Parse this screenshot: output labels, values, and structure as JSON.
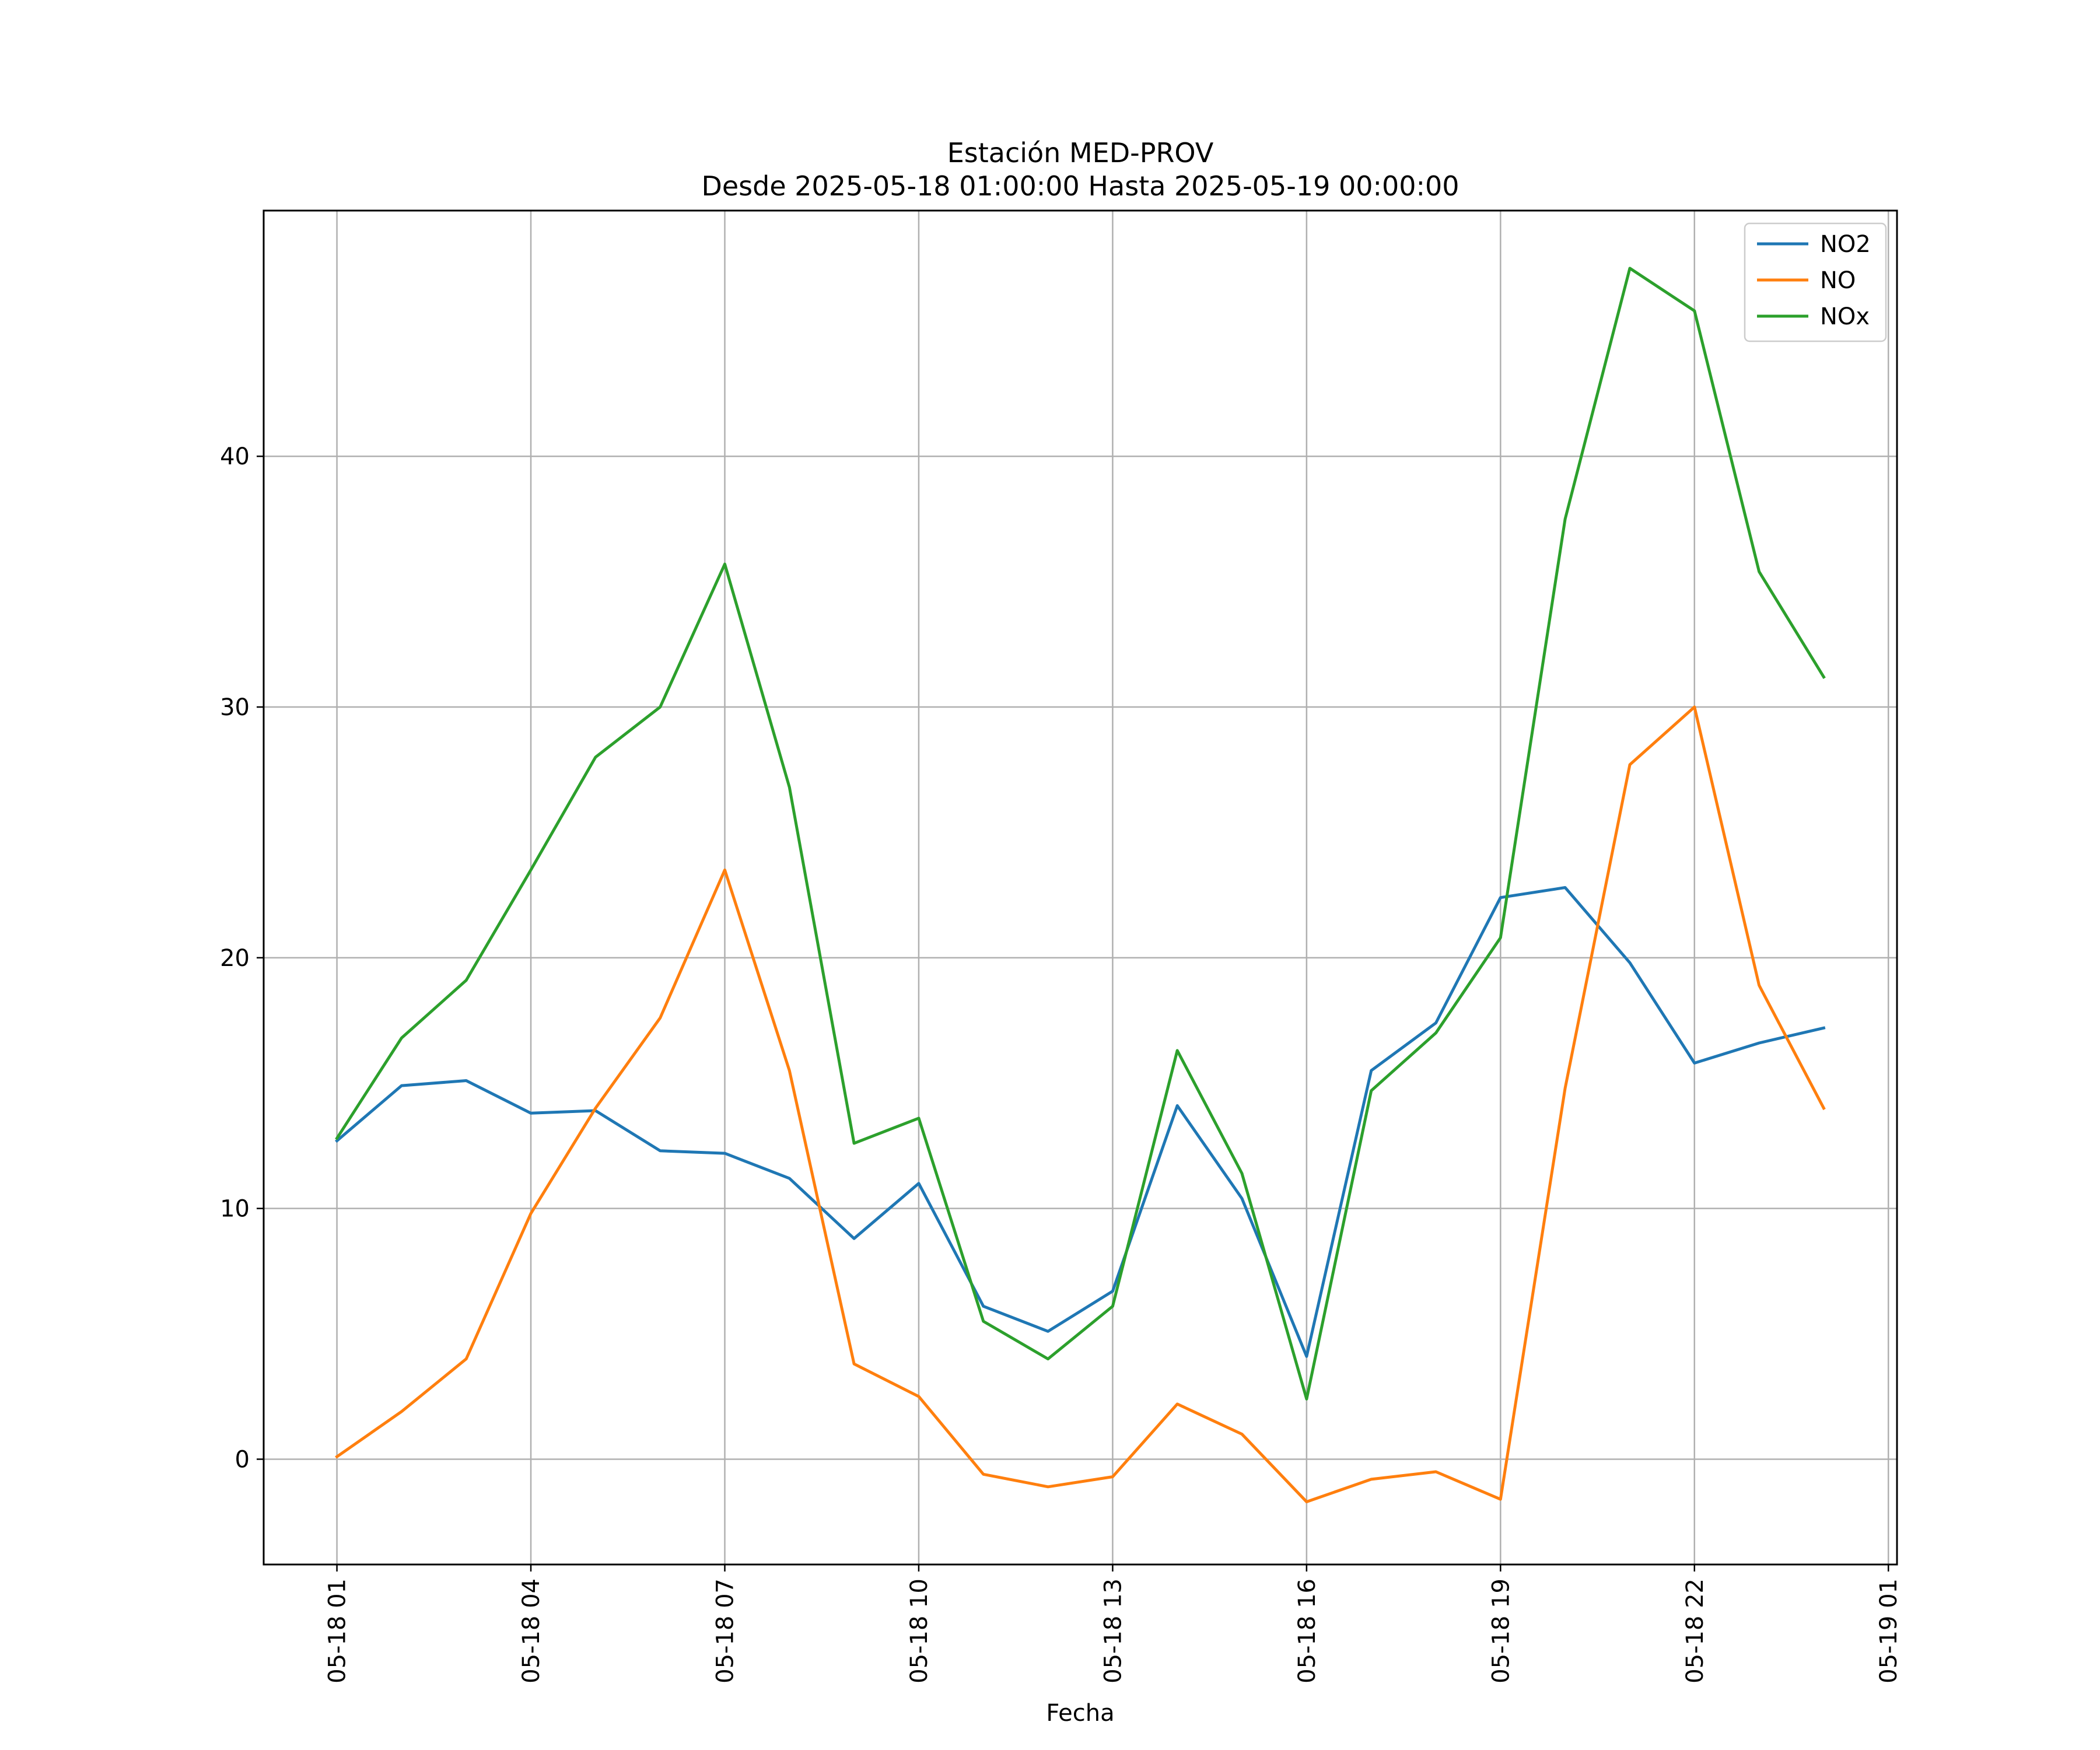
{
  "chart_data": {
    "type": "line",
    "title": "Estación MED-PROV",
    "subtitle": "Desde 2025-05-18 01:00:00 Hasta 2025-05-19 00:00:00",
    "xlabel": "Fecha",
    "ylabel": "",
    "x": [
      "2025-05-18 01:00",
      "2025-05-18 02:00",
      "2025-05-18 03:00",
      "2025-05-18 04:00",
      "2025-05-18 05:00",
      "2025-05-18 06:00",
      "2025-05-18 07:00",
      "2025-05-18 08:00",
      "2025-05-18 09:00",
      "2025-05-18 10:00",
      "2025-05-18 11:00",
      "2025-05-18 12:00",
      "2025-05-18 13:00",
      "2025-05-18 14:00",
      "2025-05-18 15:00",
      "2025-05-18 16:00",
      "2025-05-18 17:00",
      "2025-05-18 18:00",
      "2025-05-18 19:00",
      "2025-05-18 20:00",
      "2025-05-18 21:00",
      "2025-05-18 22:00",
      "2025-05-18 23:00",
      "2025-05-19 00:00"
    ],
    "x_tick_labels": [
      "05-18 01",
      "05-18 04",
      "05-18 07",
      "05-18 10",
      "05-18 13",
      "05-18 16",
      "05-18 19",
      "05-18 22",
      "05-19 01"
    ],
    "x_range": [
      "2025-05-17 23:52",
      "2025-05-19 01:08"
    ],
    "y_ticks": [
      0,
      10,
      20,
      30,
      40
    ],
    "ylim": [
      -4.2,
      49.8
    ],
    "grid": true,
    "legend_position": "top-right",
    "series": [
      {
        "name": "NO2",
        "color": "#1f77b4",
        "values": [
          12.7,
          14.9,
          15.1,
          13.8,
          13.9,
          12.3,
          12.2,
          11.2,
          8.8,
          11.0,
          6.1,
          5.1,
          6.7,
          14.1,
          10.4,
          4.1,
          15.5,
          17.4,
          22.4,
          22.8,
          19.8,
          15.8,
          16.6,
          17.2
        ]
      },
      {
        "name": "NO",
        "color": "#ff7f0e",
        "values": [
          0.1,
          1.9,
          4.0,
          9.8,
          14.0,
          17.6,
          23.5,
          15.5,
          3.8,
          2.5,
          -0.6,
          -1.1,
          -0.7,
          2.2,
          1.0,
          -1.7,
          -0.8,
          -0.5,
          -1.6,
          14.8,
          27.7,
          30.0,
          18.9,
          14.0
        ]
      },
      {
        "name": "NOx",
        "color": "#2ca02c",
        "values": [
          12.8,
          16.8,
          19.1,
          23.5,
          28.0,
          30.0,
          35.7,
          26.8,
          12.6,
          13.6,
          5.5,
          4.0,
          6.1,
          16.3,
          11.4,
          2.4,
          14.7,
          17.0,
          20.8,
          37.5,
          47.5,
          45.8,
          35.4,
          31.2
        ]
      }
    ]
  }
}
